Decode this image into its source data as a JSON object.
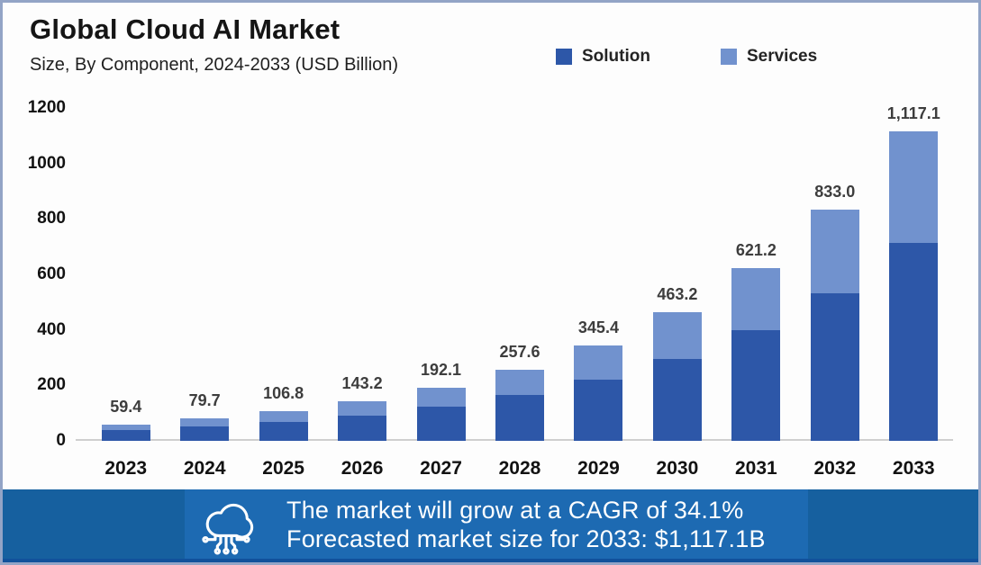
{
  "header": {
    "title": "Global Cloud AI Market",
    "subtitle": "Size, By Component, 2024-2033 (USD Billion)"
  },
  "legend": [
    {
      "label": "Solution",
      "color": "#2d57a8"
    },
    {
      "label": "Services",
      "color": "#7192ce"
    }
  ],
  "chart_data": {
    "type": "bar",
    "stacked": true,
    "title": "Global Cloud AI Market",
    "subtitle": "Size, By Component, 2024-2033 (USD Billion)",
    "categories": [
      "2023",
      "2024",
      "2025",
      "2026",
      "2027",
      "2028",
      "2029",
      "2030",
      "2031",
      "2032",
      "2033"
    ],
    "totals": [
      59.4,
      79.7,
      106.8,
      143.2,
      192.1,
      257.6,
      345.4,
      463.2,
      621.2,
      833.0,
      1117.1
    ],
    "total_labels": [
      "59.4",
      "79.7",
      "106.8",
      "143.2",
      "192.1",
      "257.6",
      "345.4",
      "463.2",
      "621.2",
      "833.0",
      "1,117.1"
    ],
    "series": [
      {
        "name": "Solution",
        "color": "#2d57a8",
        "values": [
          38.0,
          51.0,
          68.4,
          91.6,
          123.0,
          164.9,
          221.1,
          296.4,
          397.6,
          533.1,
          715.0
        ]
      },
      {
        "name": "Services",
        "color": "#7192ce",
        "values": [
          21.4,
          28.7,
          38.4,
          51.6,
          69.1,
          92.7,
          124.3,
          166.8,
          223.6,
          299.9,
          402.1
        ]
      }
    ],
    "ylim": [
      0,
      1200
    ],
    "yticks": [
      0,
      200,
      400,
      600,
      800,
      1000,
      1200
    ],
    "ytick_labels": [
      "0",
      "200",
      "400",
      "600",
      "800",
      "1000",
      "1200"
    ],
    "grid": false,
    "legend_position": "top"
  },
  "footer": {
    "line1": "The market will grow at a CAGR of 34.1%",
    "line2": "Forecasted market size for 2033: $1,117.1B",
    "bg_color": "#16609f",
    "icon": "cloud-network-icon"
  }
}
